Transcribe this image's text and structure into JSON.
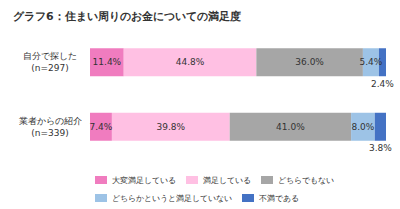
{
  "chart_data": {
    "type": "bar",
    "title": "グラフ6：住まい周りのお金についての満足度",
    "orientation": "horizontal",
    "stacked": true,
    "data_labels": true,
    "tick_labels": "y",
    "grid": false,
    "legend": "bottom",
    "xlim": [
      0,
      100
    ],
    "categories": [
      "自分で探した\n(n=297)",
      "業者からの紹介\n(n=339)"
    ],
    "series": [
      {
        "name": "大変満足している",
        "color": "#f07cbf",
        "values": [
          11.4,
          7.4
        ],
        "value_labels": [
          "11.4%",
          "7.4%"
        ]
      },
      {
        "name": "満足している",
        "color": "#ffc0e3",
        "values": [
          44.8,
          39.8
        ],
        "value_labels": [
          "44.8%",
          "39.8%"
        ]
      },
      {
        "name": "どちらでもない",
        "color": "#a6a6a6",
        "values": [
          36.0,
          41.0
        ],
        "value_labels": [
          "36.0%",
          "41.0%"
        ]
      },
      {
        "name": "どちらかというと満足していない",
        "color": "#9dc3e6",
        "values": [
          5.4,
          8.0
        ],
        "value_labels": [
          "5.4%",
          "8.0%"
        ]
      },
      {
        "name": "不満である",
        "color": "#4472c4",
        "values": [
          2.4,
          3.8
        ],
        "value_labels": [
          "2.4%",
          "3.8%"
        ]
      }
    ]
  }
}
